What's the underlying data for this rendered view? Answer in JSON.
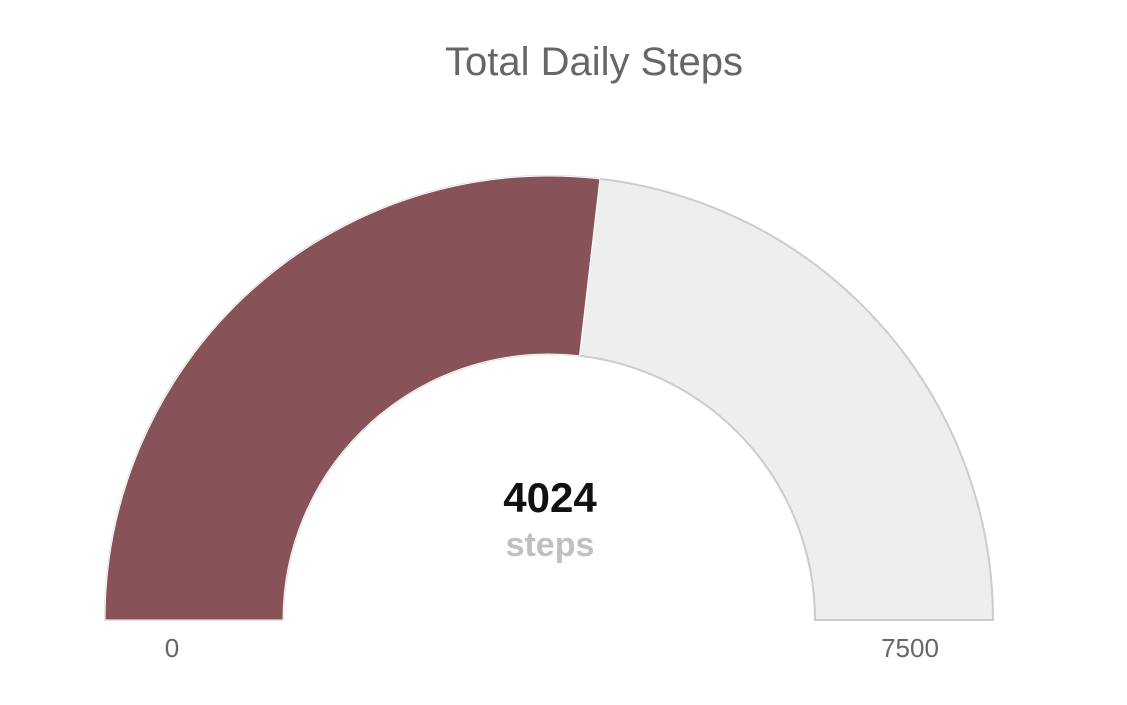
{
  "chart_data": {
    "type": "gauge",
    "title": "Total Daily Steps",
    "value": 4024,
    "value_label": "4024",
    "unit": "steps",
    "min": 0,
    "max": 7500,
    "min_label": "0",
    "max_label": "7500",
    "colors": {
      "fill": "#875258",
      "background": "#eeeeee",
      "border": "#cccccc",
      "title": "#666666",
      "value": "#111111",
      "unit": "#c0c0c0"
    }
  }
}
